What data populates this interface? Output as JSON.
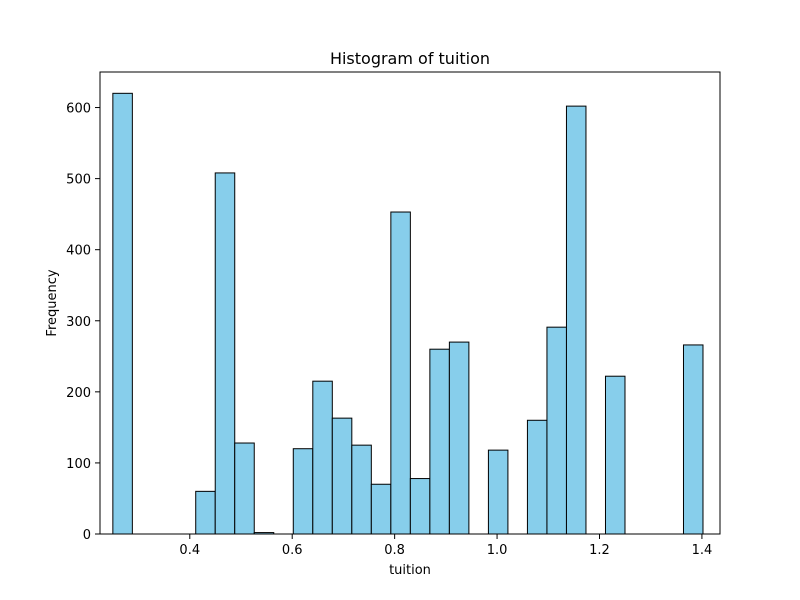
{
  "chart_data": {
    "type": "bar",
    "title": "Histogram of tuition",
    "xlabel": "tuition",
    "ylabel": "Frequency",
    "xlim": [
      0.2247,
      1.4353
    ],
    "ylim": [
      0,
      650
    ],
    "xticks": [
      "0.4",
      "0.6",
      "0.8",
      "1.0",
      "1.2",
      "1.4"
    ],
    "xtick_values": [
      0.4,
      0.6,
      0.8,
      1.0,
      1.2,
      1.4
    ],
    "yticks": [
      "0",
      "100",
      "200",
      "300",
      "400",
      "500",
      "600"
    ],
    "ytick_values": [
      0,
      100,
      200,
      300,
      400,
      500,
      600
    ],
    "grid": false,
    "bar_color": "#87CEEB",
    "edge_color": "#000000",
    "bins": [
      {
        "x0": 0.2498,
        "x1": 0.2879,
        "value": 620
      },
      {
        "x0": 0.4116,
        "x1": 0.4497,
        "value": 60
      },
      {
        "x0": 0.4497,
        "x1": 0.4878,
        "value": 508
      },
      {
        "x0": 0.4878,
        "x1": 0.5259,
        "value": 128
      },
      {
        "x0": 0.5259,
        "x1": 0.564,
        "value": 2
      },
      {
        "x0": 0.6021,
        "x1": 0.6402,
        "value": 120
      },
      {
        "x0": 0.6402,
        "x1": 0.6783,
        "value": 215
      },
      {
        "x0": 0.6783,
        "x1": 0.7164,
        "value": 163
      },
      {
        "x0": 0.7164,
        "x1": 0.7545,
        "value": 125
      },
      {
        "x0": 0.7545,
        "x1": 0.7926,
        "value": 70
      },
      {
        "x0": 0.7926,
        "x1": 0.8307,
        "value": 453
      },
      {
        "x0": 0.8307,
        "x1": 0.8688,
        "value": 78
      },
      {
        "x0": 0.8688,
        "x1": 0.9069,
        "value": 260
      },
      {
        "x0": 0.9069,
        "x1": 0.945,
        "value": 270
      },
      {
        "x0": 0.9831,
        "x1": 1.0212,
        "value": 118
      },
      {
        "x0": 1.0593,
        "x1": 1.0974,
        "value": 160
      },
      {
        "x0": 1.0974,
        "x1": 1.1355,
        "value": 291
      },
      {
        "x0": 1.1355,
        "x1": 1.1736,
        "value": 602
      },
      {
        "x0": 1.2117,
        "x1": 1.2498,
        "value": 222
      },
      {
        "x0": 1.364,
        "x1": 1.4021,
        "value": 266
      }
    ]
  }
}
